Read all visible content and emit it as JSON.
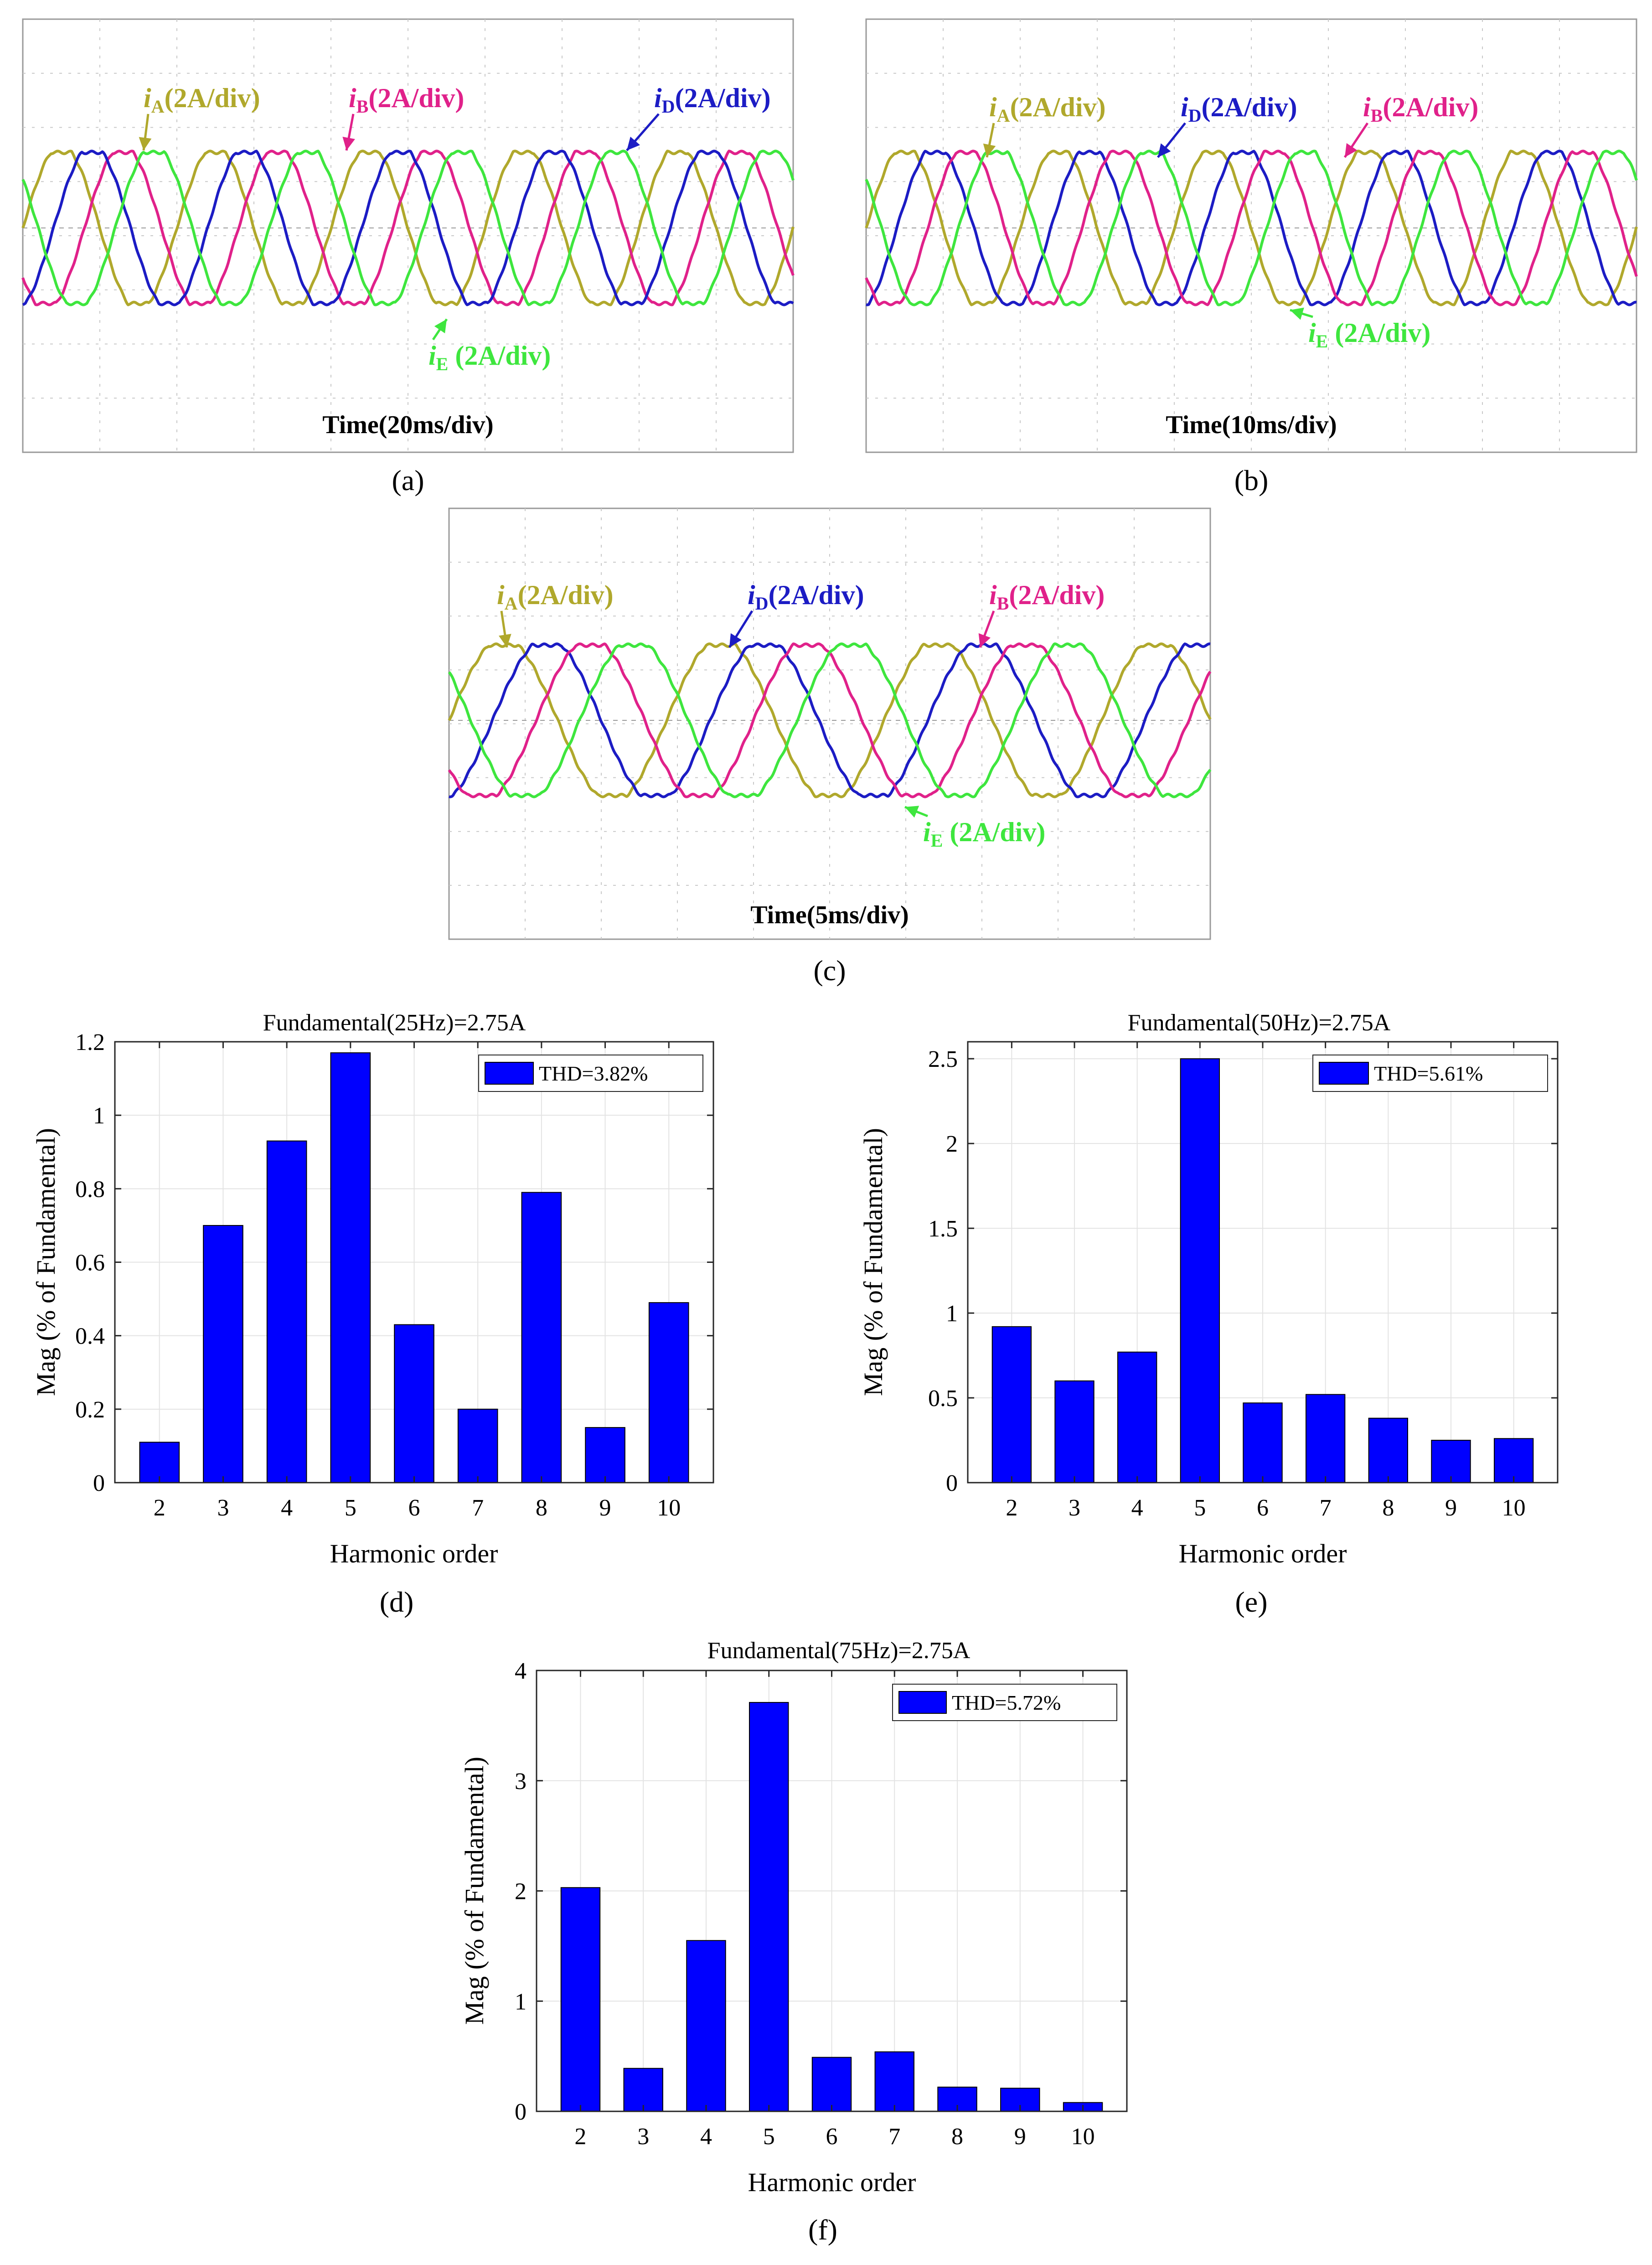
{
  "figure": {
    "panel_labels": [
      "(a)",
      "(b)",
      "(c)",
      "(d)",
      "(e)",
      "(f)"
    ]
  },
  "colors": {
    "iA": "#b0a82c",
    "iB": "#e0218a",
    "iD": "#1c1cc4",
    "iE": "#3ee63e",
    "bar": "#0000ff",
    "scope_grid": "#c8c8c8"
  },
  "chart_data": [
    {
      "id": "a",
      "type": "line",
      "title": "",
      "xlabel": "Time(20ms/div)",
      "ylabel": "",
      "divisions_x": 10,
      "divisions_y": 8,
      "frequency_hz": 25,
      "series": [
        {
          "name": "i_A",
          "sub": "A",
          "label_text": "(2A/div)",
          "color_key": "iA",
          "amplitude_div": 1.5,
          "phase_deg": 0
        },
        {
          "name": "i_B",
          "sub": "B",
          "label_text": "(2A/div)",
          "color_key": "iB",
          "amplitude_div": 1.5,
          "phase_deg": -144
        },
        {
          "name": "i_D",
          "sub": "D",
          "label_text": "(2A/div)",
          "color_key": "iD",
          "amplitude_div": 1.5,
          "phase_deg": -72
        },
        {
          "name": "i_E",
          "sub": "E",
          "label_text": " (2A/div)",
          "color_key": "iE",
          "amplitude_div": 1.5,
          "phase_deg": -216
        }
      ]
    },
    {
      "id": "b",
      "type": "line",
      "title": "",
      "xlabel": "Time(10ms/div)",
      "ylabel": "",
      "divisions_x": 10,
      "divisions_y": 8,
      "frequency_hz": 50,
      "series": [
        {
          "name": "i_A",
          "sub": "A",
          "label_text": "(2A/div)",
          "color_key": "iA",
          "amplitude_div": 1.5,
          "phase_deg": 0
        },
        {
          "name": "i_D",
          "sub": "D",
          "label_text": "(2A/div)",
          "color_key": "iD",
          "amplitude_div": 1.5,
          "phase_deg": -72
        },
        {
          "name": "i_B",
          "sub": "B",
          "label_text": "(2A/div)",
          "color_key": "iB",
          "amplitude_div": 1.5,
          "phase_deg": -144
        },
        {
          "name": "i_E",
          "sub": "E",
          "label_text": " (2A/div)",
          "color_key": "iE",
          "amplitude_div": 1.5,
          "phase_deg": -216
        }
      ]
    },
    {
      "id": "c",
      "type": "line",
      "title": "",
      "xlabel": "Time(5ms/div)",
      "ylabel": "",
      "divisions_x": 10,
      "divisions_y": 8,
      "frequency_hz": 75,
      "series": [
        {
          "name": "i_A",
          "sub": "A",
          "label_text": "(2A/div)",
          "color_key": "iA",
          "amplitude_div": 1.5,
          "phase_deg": 0
        },
        {
          "name": "i_D",
          "sub": "D",
          "label_text": "(2A/div)",
          "color_key": "iD",
          "amplitude_div": 1.5,
          "phase_deg": -72
        },
        {
          "name": "i_B",
          "sub": "B",
          "label_text": "(2A/div)",
          "color_key": "iB",
          "amplitude_div": 1.5,
          "phase_deg": -144
        },
        {
          "name": "i_E",
          "sub": "E",
          "label_text": " (2A/div)",
          "color_key": "iE",
          "amplitude_div": 1.5,
          "phase_deg": -216
        }
      ]
    },
    {
      "id": "d",
      "type": "bar",
      "title": "Fundamental(25Hz)=2.75A",
      "xlabel": "Harmonic order",
      "ylabel": "Mag (% of Fundamental)",
      "categories": [
        "2",
        "3",
        "4",
        "5",
        "6",
        "7",
        "8",
        "9",
        "10"
      ],
      "values": [
        0.11,
        0.7,
        0.93,
        1.17,
        0.43,
        0.2,
        0.79,
        0.15,
        0.49
      ],
      "ylim": [
        0,
        1.2
      ],
      "yticks": [
        0,
        0.2,
        0.4,
        0.6,
        0.8,
        1.0,
        1.2
      ],
      "ytick_labels": [
        "0",
        "0.2",
        "0.4",
        "0.6",
        "0.8",
        "1",
        "1.2"
      ],
      "legend": "THD=3.82%",
      "legend_position": "top-right",
      "grid": true
    },
    {
      "id": "e",
      "type": "bar",
      "title": "Fundamental(50Hz)=2.75A",
      "xlabel": "Harmonic order",
      "ylabel": "Mag (% of Fundamental)",
      "categories": [
        "2",
        "3",
        "4",
        "5",
        "6",
        "7",
        "8",
        "9",
        "10"
      ],
      "values": [
        0.92,
        0.6,
        0.77,
        2.5,
        0.47,
        0.52,
        0.38,
        0.25,
        0.26
      ],
      "ylim": [
        0,
        2.6
      ],
      "yticks": [
        0,
        0.5,
        1.0,
        1.5,
        2.0,
        2.5
      ],
      "ytick_labels": [
        "0",
        "0.5",
        "1",
        "1.5",
        "2",
        "2.5"
      ],
      "legend": "THD=5.61%",
      "legend_position": "top-right",
      "grid": true
    },
    {
      "id": "f",
      "type": "bar",
      "title": "Fundamental(75Hz)=2.75A",
      "xlabel": "Harmonic order",
      "ylabel": "Mag (% of Fundamental)",
      "categories": [
        "2",
        "3",
        "4",
        "5",
        "6",
        "7",
        "8",
        "9",
        "10"
      ],
      "values": [
        2.03,
        0.39,
        1.55,
        3.71,
        0.49,
        0.54,
        0.22,
        0.21,
        0.08
      ],
      "ylim": [
        0,
        4
      ],
      "yticks": [
        0,
        1,
        2,
        3,
        4
      ],
      "ytick_labels": [
        "0",
        "1",
        "2",
        "3",
        "4"
      ],
      "legend": "THD=5.72%",
      "legend_position": "top-right",
      "grid": true
    }
  ]
}
